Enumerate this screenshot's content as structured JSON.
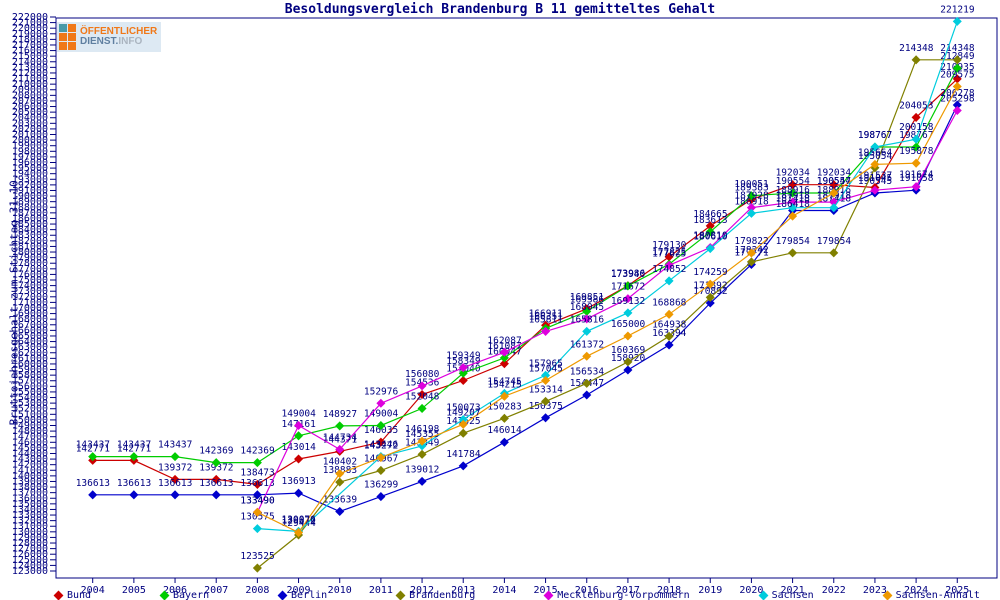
{
  "title": "Besoldungsvergleich Brandenburg B 11 gemitteltes Gehalt",
  "y_axis_title": "Bruttojahresgehalt zum Stichtag 31.10.",
  "logo": {
    "line1": "ÖFFENTLICHER",
    "line2a": "DIENST.",
    "line2b": "INFO"
  },
  "colors": {
    "axis": "#000080",
    "label_text": "#000080",
    "background": "#ffffff"
  },
  "chart_data": {
    "type": "line",
    "title": "Besoldungsvergleich Brandenburg B 11 gemitteltes Gehalt",
    "xlabel": "",
    "ylabel": "Bruttojahresgehalt zum Stichtag 31.10.",
    "x": [
      2004,
      2005,
      2006,
      2007,
      2008,
      2009,
      2010,
      2011,
      2012,
      2013,
      2014,
      2015,
      2016,
      2017,
      2018,
      2019,
      2020,
      2021,
      2022,
      2023,
      2024,
      2025
    ],
    "ylim": [
      123000,
      222000
    ],
    "ytick_step": 1000,
    "grid": false,
    "legend_position": "bottom",
    "point_labels": true,
    "series": [
      {
        "name": "Bund",
        "color": "#cc0000",
        "values": [
          142771,
          142771,
          139372,
          139372,
          138473,
          143014,
          144371,
          146035,
          154536,
          157040,
          160047,
          166911,
          169851,
          173986,
          179130,
          184665,
          189383,
          192034,
          192034,
          191537,
          204053,
          210935
        ]
      },
      {
        "name": "Bayern",
        "color": "#00cc00",
        "values": [
          143437,
          143437,
          143437,
          142369,
          142369,
          147161,
          148927,
          149004,
          152048,
          158349,
          161087,
          166351,
          169386,
          173940,
          177825,
          183613,
          190051,
          190554,
          190554,
          198767,
          198767,
          212849
        ]
      },
      {
        "name": "Berlin",
        "color": "#0000cc",
        "values": [
          136613,
          136613,
          136613,
          136613,
          136613,
          136913,
          133639,
          136299,
          139012,
          141784,
          146014,
          150375,
          154447,
          158920,
          163394,
          170892,
          177771,
          187418,
          187418,
          190545,
          191058,
          206278
        ]
      },
      {
        "name": "Brandenburg",
        "color": "#808000",
        "values": [
          null,
          null,
          null,
          null,
          123525,
          129444,
          138883,
          140967,
          143849,
          147625,
          150283,
          153314,
          156534,
          160369,
          164938,
          171892,
          178242,
          179854,
          179854,
          195054,
          214348,
          214348
        ]
      },
      {
        "name": "Mecklenburg-Vorpommern",
        "color": "#dd00dd",
        "values": [
          null,
          null,
          null,
          null,
          133490,
          149004,
          144734,
          152976,
          156080,
          159349,
          162087,
          165811,
          168045,
          171672,
          177625,
          180810,
          187928,
          188916,
          188916,
          191045,
          191674,
          205298
        ]
      },
      {
        "name": "Sachsen",
        "color": "#00ccdd",
        "values": [
          null,
          null,
          null,
          null,
          130575,
          130076,
          null,
          143446,
          145355,
          150073,
          154745,
          157965,
          165816,
          169132,
          174852,
          180610,
          186918,
          187918,
          187918,
          198767,
          200158,
          221219
        ]
      },
      {
        "name": "Sachsen-Anhalt",
        "color": "#ee9900",
        "values": [
          null,
          null,
          null,
          null,
          133490,
          129872,
          140402,
          143272,
          146198,
          149207,
          154215,
          157045,
          161372,
          165000,
          168868,
          174259,
          179822,
          186418,
          190547,
          195664,
          195878,
          209575
        ]
      }
    ]
  }
}
